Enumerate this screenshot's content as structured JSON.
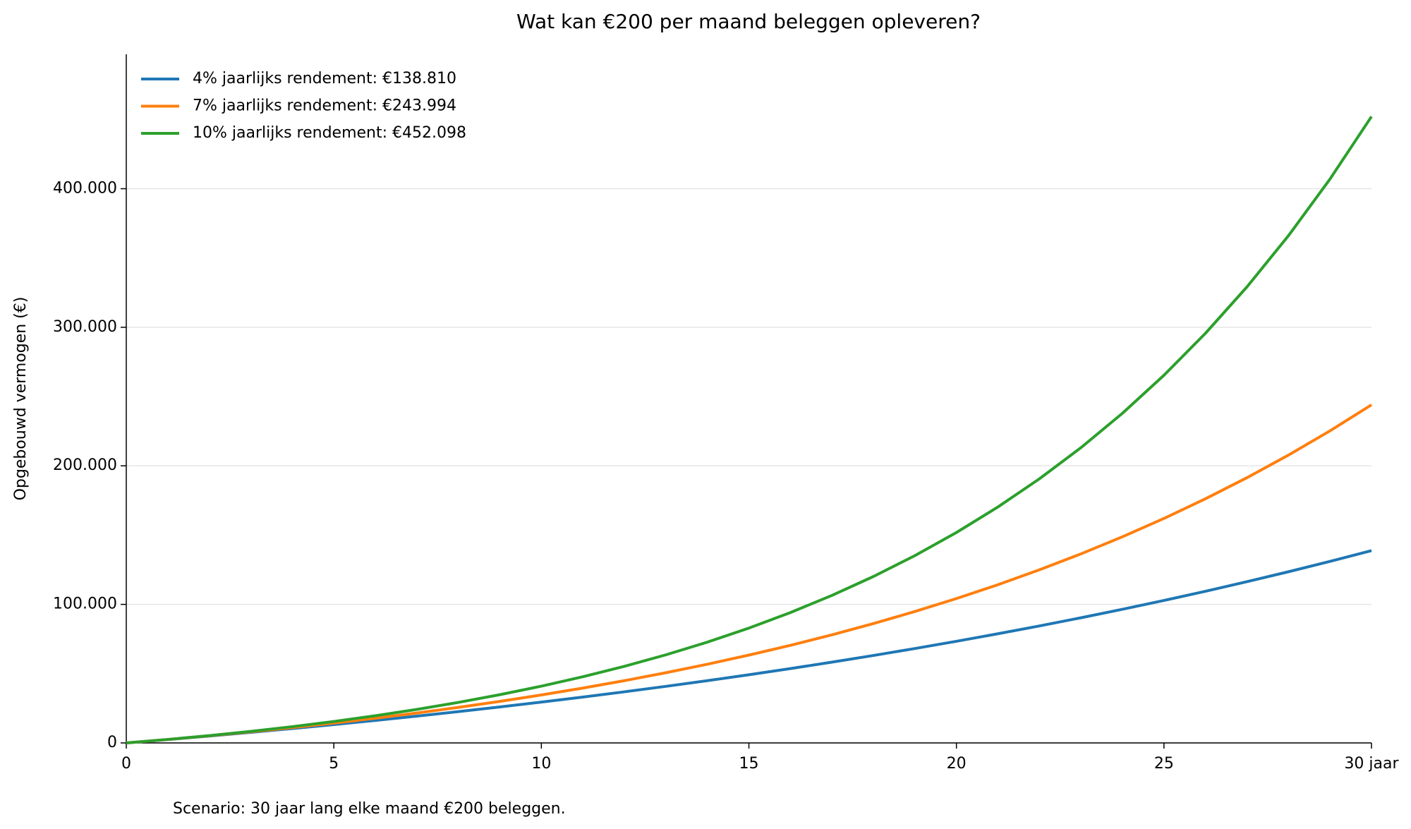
{
  "chart_data": {
    "type": "line",
    "title": "Wat kan €200 per maand beleggen opleveren?",
    "ylabel": "Opgebouwd vermogen (€)",
    "note": "Scenario: 30 jaar lang elke maand €200 beleggen.",
    "x": [
      0,
      1,
      2,
      3,
      4,
      5,
      6,
      7,
      8,
      9,
      10,
      11,
      12,
      13,
      14,
      15,
      16,
      17,
      18,
      19,
      20,
      21,
      22,
      23,
      24,
      25,
      26,
      27,
      28,
      29,
      30
    ],
    "series": [
      {
        "name": "4% jaarlijks rendement: €138.810",
        "color": "#1f77b4",
        "values": [
          0,
          2445,
          4989,
          7636,
          10392,
          13260,
          16245,
          19351,
          22584,
          25948,
          29450,
          33094,
          36887,
          40834,
          44943,
          49218,
          53668,
          58299,
          63119,
          68135,
          73355,
          78788,
          84443,
          90328,
          96452,
          102827,
          109460,
          116365,
          123550,
          131028,
          138810
        ]
      },
      {
        "name": "7% jaarlijks rendement: €243.994",
        "color": "#ff7f0e",
        "values": [
          0,
          2478,
          5136,
          7987,
          11041,
          14319,
          17833,
          21600,
          25640,
          29971,
          34617,
          39598,
          44939,
          50667,
          56808,
          63394,
          70455,
          78027,
          86146,
          94852,
          104187,
          114198,
          124931,
          136441,
          148783,
          162018,
          176209,
          191425,
          207742,
          225239,
          243994
        ]
      },
      {
        "name": "10% jaarlijks rendement: €452.098",
        "color": "#2ca02c",
        "values": [
          0,
          2513,
          5289,
          8356,
          11745,
          15487,
          19622,
          24190,
          29236,
          34811,
          40969,
          47772,
          55287,
          63590,
          72762,
          82894,
          94087,
          106452,
          120112,
          135202,
          151873,
          170289,
          190633,
          213108,
          237937,
          265365,
          295665,
          329138,
          366116,
          406966,
          452098
        ]
      }
    ],
    "xlim": [
      0,
      30
    ],
    "xticks": [
      0,
      5,
      10,
      15,
      20,
      25,
      {
        "value": 30,
        "label": "30 jaar"
      }
    ],
    "ylim": [
      0,
      497000
    ],
    "yticks": [
      0,
      {
        "value": 100000,
        "label": "100.000"
      },
      {
        "value": 200000,
        "label": "200.000"
      },
      {
        "value": 300000,
        "label": "300.000"
      },
      {
        "value": 400000,
        "label": "400.000"
      }
    ],
    "grid": true,
    "legend": "upper left"
  }
}
